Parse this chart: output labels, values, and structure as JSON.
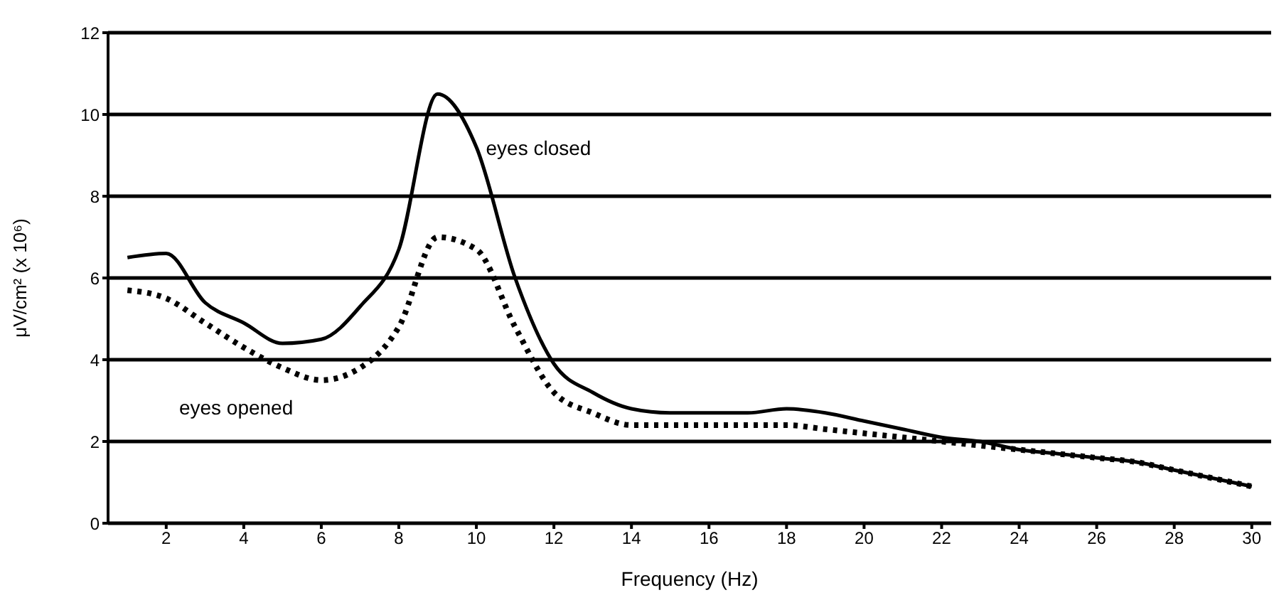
{
  "chart_data": {
    "type": "line",
    "xlabel": "Frequency (Hz)",
    "ylabel": "μV/cm² (x 10⁶)",
    "x": [
      1,
      2,
      3,
      4,
      5,
      6,
      7,
      8,
      9,
      10,
      11,
      12,
      13,
      14,
      15,
      16,
      17,
      18,
      19,
      20,
      21,
      22,
      23,
      24,
      25,
      26,
      27,
      28,
      29,
      30
    ],
    "series": [
      {
        "name": "eyes closed",
        "color": "#000000",
        "line_style": "solid",
        "values": [
          6.5,
          6.6,
          5.4,
          4.9,
          4.4,
          4.5,
          5.3,
          6.7,
          10.5,
          9.2,
          6.0,
          3.9,
          3.2,
          2.8,
          2.7,
          2.7,
          2.7,
          2.8,
          2.7,
          2.5,
          2.3,
          2.1,
          2.0,
          1.8,
          1.7,
          1.6,
          1.5,
          1.3,
          1.1,
          0.9
        ]
      },
      {
        "name": "eyes opened",
        "color": "#000000",
        "line_style": "dotted",
        "values": [
          5.7,
          5.5,
          4.9,
          4.3,
          3.8,
          3.5,
          3.8,
          4.8,
          7.0,
          6.7,
          4.8,
          3.2,
          2.7,
          2.4,
          2.4,
          2.4,
          2.4,
          2.4,
          2.3,
          2.2,
          2.1,
          2.0,
          1.9,
          1.8,
          1.7,
          1.6,
          1.5,
          1.3,
          1.1,
          0.9
        ]
      }
    ],
    "xlim": [
      0.5,
      30.5
    ],
    "xticks": [
      2,
      4,
      6,
      8,
      10,
      12,
      14,
      16,
      18,
      20,
      22,
      24,
      26,
      28,
      30
    ],
    "ylim": [
      0,
      12
    ],
    "yticks": [
      0,
      2,
      4,
      6,
      8,
      10,
      12
    ],
    "grid": "y",
    "legend": false,
    "marker": "none"
  }
}
